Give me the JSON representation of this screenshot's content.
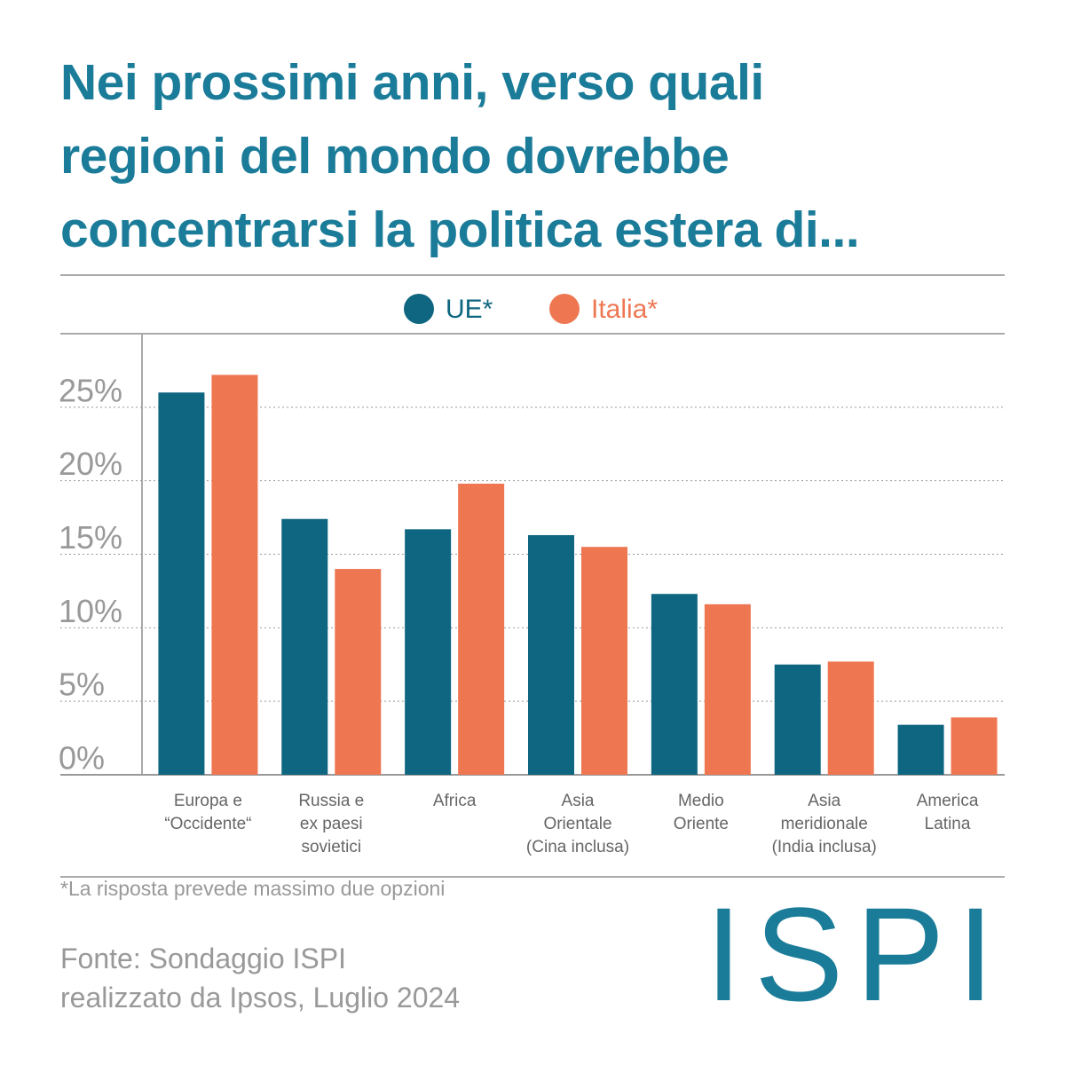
{
  "chart_data": {
    "type": "bar",
    "title": "Nei prossimi anni, verso quali\nregioni del mondo dovrebbe\nconcentrarsi la politica estera di...",
    "categories": [
      "Europa e\n“Occidente“",
      "Russia e\nex paesi\nsovietici",
      "Africa",
      "Asia\nOrientale\n(Cina inclusa)",
      "Medio\nOriente",
      "Asia\nmeridionale\n(India inclusa)",
      "America\nLatina"
    ],
    "series": [
      {
        "name": "UE*",
        "color": "#0e6680",
        "values": [
          26.0,
          17.4,
          16.7,
          16.3,
          12.3,
          7.5,
          3.4
        ]
      },
      {
        "name": "Italia*",
        "color": "#ee7752",
        "values": [
          27.2,
          14.0,
          19.8,
          15.5,
          11.6,
          7.7,
          3.9
        ]
      }
    ],
    "ylim": [
      0,
      30
    ],
    "yticks": [
      {
        "value": 0,
        "label": "0%"
      },
      {
        "value": 5,
        "label": "5%"
      },
      {
        "value": 10,
        "label": "10%"
      },
      {
        "value": 15,
        "label": "15%"
      },
      {
        "value": 20,
        "label": "20%"
      },
      {
        "value": 25,
        "label": "25%"
      }
    ],
    "grid": true,
    "footnote": "*La risposta prevede massimo due opzioni",
    "source": "Fonte: Sondaggio ISPI\nrealizzato da Ipsos, Luglio 2024",
    "logo": "ISPI"
  }
}
